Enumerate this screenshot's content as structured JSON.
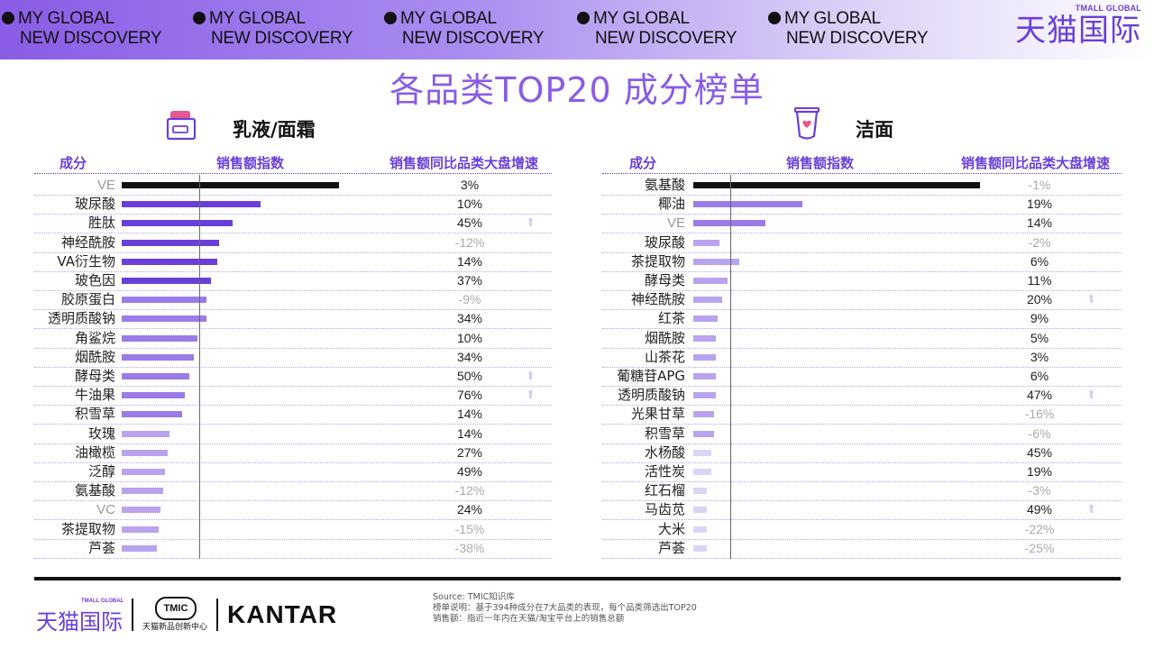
{
  "header": {
    "slogans": [
      {
        "line1": "MY GLOBAL",
        "line2": "NEW DISCOVERY"
      },
      {
        "line1": "MY GLOBAL",
        "line2": "NEW DISCOVERY"
      },
      {
        "line1": "MY GLOBAL",
        "line2": "NEW DISCOVERY"
      },
      {
        "line1": "MY GLOBAL",
        "line2": "NEW DISCOVERY"
      },
      {
        "line1": "MY GLOBAL",
        "line2": "NEW DISCOVERY"
      }
    ],
    "logo_sub": "TMALL GLOBAL",
    "logo_main": "天猫国际"
  },
  "page_title": "各品类TOP20 成分榜单",
  "colors": {
    "accent": "#8a5ce6",
    "bar_top": "#111111",
    "bar_dark": "#6a3fd9",
    "bar_mid": "#9b7be8",
    "bar_light": "#b9a3ee",
    "bar_pale": "#ddd3f6",
    "trend_icon": "#d8ccf2"
  },
  "chart_data": [
    {
      "type": "bar",
      "title": "乳液/面霜",
      "icon": "lotion-jar-icon",
      "columns": {
        "ingredient": "成分",
        "index": "销售额指数",
        "growth": "销售额同比品类大盘增速"
      },
      "categories": [
        "VE",
        "玻尿酸",
        "胜肽",
        "神经酰胺",
        "VA衍生物",
        "玻色因",
        "胶原蛋白",
        "透明质酸钠",
        "角鲨烷",
        "烟酰胺",
        "酵母类",
        "牛油果",
        "积雪草",
        "玫瑰",
        "油橄榄",
        "泛醇",
        "氨基酸",
        "VC",
        "茶提取物",
        "芦荟"
      ],
      "series": [
        {
          "values": [
            100,
            64,
            51,
            45,
            44,
            41,
            39,
            39,
            35,
            33,
            31,
            29,
            28,
            22,
            21,
            20,
            19,
            18,
            17,
            16
          ]
        },
        {
          "labels": [
            "3%",
            "10%",
            "45%",
            "-12%",
            "14%",
            "37%",
            "-9%",
            "34%",
            "10%",
            "34%",
            "50%",
            "76%",
            "14%",
            "14%",
            "27%",
            "49%",
            "-12%",
            "24%",
            "-15%",
            "-38%"
          ]
        }
      ],
      "trend_up_icons": [
        2,
        10,
        11
      ],
      "axis_marker": 36
    },
    {
      "type": "bar",
      "title": "洁面",
      "icon": "cleanser-tube-icon",
      "columns": {
        "ingredient": "成分",
        "index": "销售额指数",
        "growth": "销售额同比品类大盘增速"
      },
      "categories": [
        "氨基酸",
        "椰油",
        "VE",
        "玻尿酸",
        "茶提取物",
        "酵母类",
        "神经酰胺",
        "红茶",
        "烟酰胺",
        "山茶花",
        "葡糖苷APG",
        "透明质酸钠",
        "光果甘草",
        "积雪草",
        "水杨酸",
        "活性炭",
        "红石榴",
        "马齿苋",
        "大米",
        "芦荟"
      ],
      "series": [
        {
          "values": [
            100,
            38,
            25,
            9,
            16,
            12,
            10,
            8.6,
            7.9,
            7.9,
            7.9,
            7.9,
            7.2,
            7.2,
            6.3,
            6.3,
            4.7,
            4.7,
            4.7,
            4.7
          ]
        },
        {
          "labels": [
            "-1%",
            "19%",
            "14%",
            "-2%",
            "6%",
            "11%",
            "20%",
            "9%",
            "5%",
            "3%",
            "6%",
            "47%",
            "-16%",
            "-6%",
            "45%",
            "19%",
            "-3%",
            "49%",
            "-22%",
            "-25%"
          ]
        }
      ],
      "trend_up_icons": [
        6,
        11,
        17
      ],
      "axis_marker": 13
    }
  ],
  "footer": {
    "logo_main": "天猫国际",
    "logo_sub": "TMALL GLOBAL",
    "tmic_badge": "TMIC",
    "tmic_sub": "天猫新品创新中心",
    "kantar": "KANTAR",
    "notes": [
      "Source: TMIC知识库",
      "榜单说明：基于394种成分在7大品类的表现，每个品类筛选出TOP20",
      "销售额：指近一年内在天猫/淘宝平台上的销售总额"
    ]
  }
}
